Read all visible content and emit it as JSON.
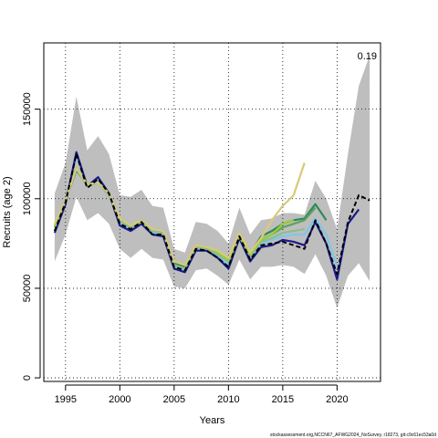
{
  "chart_data": {
    "type": "line",
    "xlabel": "Years",
    "ylabel": "Recruits (age 2)",
    "corner_label": "0.19",
    "credit": "stockassessment.org,NCCN67_AFWG2024_NoSurvey, r18273, git:c9c61ec53a0d",
    "xlim": [
      1993,
      2024
    ],
    "ylim": [
      -2000,
      187000
    ],
    "x_ticks": [
      1995,
      2000,
      2005,
      2010,
      2015,
      2020
    ],
    "y_ticks": [
      0,
      50000,
      100000,
      150000
    ],
    "grid": true,
    "band": {
      "color": "#bebebe",
      "x": [
        1994,
        1995,
        1996,
        1997,
        1998,
        1999,
        2000,
        2001,
        2002,
        2003,
        2004,
        2005,
        2006,
        2007,
        2008,
        2009,
        2010,
        2011,
        2012,
        2013,
        2014,
        2015,
        2016,
        2017,
        2018,
        2019,
        2020,
        2021,
        2022,
        2023
      ],
      "upper": [
        103000,
        120000,
        157000,
        127000,
        135000,
        125000,
        102000,
        101000,
        105000,
        96000,
        95000,
        72000,
        70000,
        87000,
        86000,
        82000,
        75000,
        95000,
        80000,
        88000,
        89000,
        92000,
        92000,
        91000,
        110000,
        100000,
        83000,
        125000,
        163000,
        180000
      ],
      "lower": [
        65000,
        80000,
        101000,
        88000,
        92000,
        86000,
        72000,
        67000,
        72000,
        67000,
        66000,
        51000,
        50000,
        60000,
        61000,
        57000,
        52000,
        66000,
        55000,
        62000,
        62000,
        63000,
        62000,
        58000,
        69000,
        57000,
        39000,
        57000,
        64000,
        54000
      ]
    },
    "series": [
      {
        "color": "#7ec8e3",
        "x": [
          1994,
          1995,
          1996,
          1997,
          1998,
          1999,
          2000,
          2001,
          2002,
          2003,
          2004,
          2005,
          2006,
          2007,
          2008,
          2009,
          2010,
          2011,
          2012,
          2013,
          2014,
          2015,
          2016,
          2017,
          2018,
          2019,
          2020
        ],
        "values": [
          82000,
          98000,
          124000,
          107000,
          110000,
          103000,
          86000,
          83000,
          87000,
          81000,
          80000,
          62000,
          60000,
          72000,
          72000,
          68000,
          63000,
          79000,
          67000,
          75000,
          77000,
          79000,
          80000,
          80000,
          89000,
          80000,
          62000
        ]
      },
      {
        "color": "#1a1a8c",
        "x": [
          1994,
          1995,
          1996,
          1997,
          1998,
          1999,
          2000,
          2001,
          2002,
          2003,
          2004,
          2005,
          2006,
          2007,
          2008,
          2009,
          2010,
          2011,
          2012,
          2013,
          2014,
          2015,
          2016,
          2017,
          2018,
          2019,
          2020,
          2021,
          2022
        ],
        "values": [
          81000,
          97000,
          126000,
          107000,
          112000,
          103000,
          85000,
          82000,
          86000,
          80000,
          79000,
          61000,
          59000,
          71000,
          71000,
          67000,
          61000,
          78000,
          65000,
          73000,
          74000,
          77000,
          76000,
          74000,
          87000,
          75000,
          55000,
          86000,
          94000
        ]
      },
      {
        "color": "#2e8b57",
        "x": [
          1994,
          1995,
          1996,
          1997,
          1998,
          1999,
          2000,
          2001,
          2002,
          2003,
          2004,
          2005,
          2006,
          2007,
          2008,
          2009,
          2010,
          2011,
          2012,
          2013,
          2014,
          2015,
          2016,
          2017,
          2018,
          2019
        ],
        "values": [
          84000,
          99000,
          116000,
          108000,
          109000,
          103000,
          88000,
          84000,
          88000,
          82000,
          81000,
          64000,
          62000,
          73000,
          73000,
          70000,
          66000,
          80000,
          69000,
          79000,
          82000,
          86000,
          88000,
          89000,
          97000,
          88000
        ]
      },
      {
        "color": "#5da35d",
        "x": [
          1994,
          1995,
          1996,
          1997,
          1998,
          1999,
          2000,
          2001,
          2002,
          2003,
          2004,
          2005,
          2006,
          2007,
          2008,
          2009,
          2010,
          2011,
          2012,
          2013,
          2014,
          2015,
          2016,
          2017,
          2018
        ],
        "values": [
          84000,
          99000,
          117000,
          107000,
          109000,
          102000,
          88000,
          84000,
          87000,
          82000,
          81000,
          63000,
          61000,
          73000,
          72000,
          69000,
          65000,
          79000,
          68000,
          77000,
          80000,
          84000,
          86000,
          88000,
          95000
        ]
      },
      {
        "color": "#8fbc8f",
        "x": [
          1994,
          1995,
          1996,
          1997,
          1998,
          1999,
          2000,
          2001,
          2002,
          2003,
          2004,
          2005,
          2006,
          2007,
          2008,
          2009,
          2010,
          2011,
          2012,
          2013,
          2014,
          2015,
          2016,
          2017
        ],
        "values": [
          84000,
          99000,
          117000,
          107000,
          109000,
          102000,
          88000,
          84000,
          87000,
          82000,
          81000,
          63000,
          61000,
          73000,
          72000,
          69000,
          65000,
          79000,
          68000,
          76000,
          78000,
          81000,
          82000,
          83000
        ]
      },
      {
        "color": "#9acd32",
        "x": [
          1994,
          1995,
          1996,
          1997,
          1998,
          1999,
          2000,
          2001,
          2002,
          2003,
          2004,
          2005,
          2006,
          2007,
          2008,
          2009,
          2010,
          2011,
          2012,
          2013,
          2014,
          2015,
          2016
        ],
        "values": [
          85000,
          99000,
          117000,
          108000,
          109000,
          103000,
          89000,
          85000,
          88000,
          83000,
          82000,
          65000,
          63000,
          74000,
          73000,
          70000,
          66000,
          80000,
          69000,
          77000,
          80000,
          86000,
          88000
        ]
      },
      {
        "color": "#d9c97a",
        "x": [
          1994,
          1995,
          1996,
          1997,
          1998,
          1999,
          2000,
          2001,
          2002,
          2003,
          2004,
          2005,
          2006,
          2007,
          2008,
          2009,
          2010,
          2011,
          2012,
          2013,
          2014,
          2015,
          2016,
          2017
        ],
        "values": [
          86000,
          99000,
          117000,
          108000,
          109000,
          103000,
          89000,
          85000,
          88000,
          83000,
          82000,
          65000,
          63000,
          74000,
          73000,
          71000,
          67000,
          81000,
          70000,
          78000,
          88000,
          96000,
          102000,
          120000
        ]
      },
      {
        "color": "#000000",
        "dashed": true,
        "x": [
          1994,
          1995,
          1996,
          1997,
          1998,
          1999,
          2000,
          2001,
          2002,
          2003,
          2004,
          2005,
          2006,
          2007,
          2008,
          2009,
          2010,
          2011,
          2012,
          2013,
          2014,
          2015,
          2016,
          2017,
          2018,
          2019,
          2020,
          2021,
          2022,
          2023
        ],
        "values": [
          82000,
          98000,
          125000,
          106000,
          111000,
          103000,
          86000,
          83000,
          87000,
          80000,
          80000,
          62000,
          60000,
          72000,
          71000,
          67000,
          62000,
          79000,
          66000,
          74000,
          75000,
          76000,
          74000,
          72000,
          88000,
          75000,
          58000,
          87000,
          102000,
          99000
        ]
      }
    ]
  }
}
